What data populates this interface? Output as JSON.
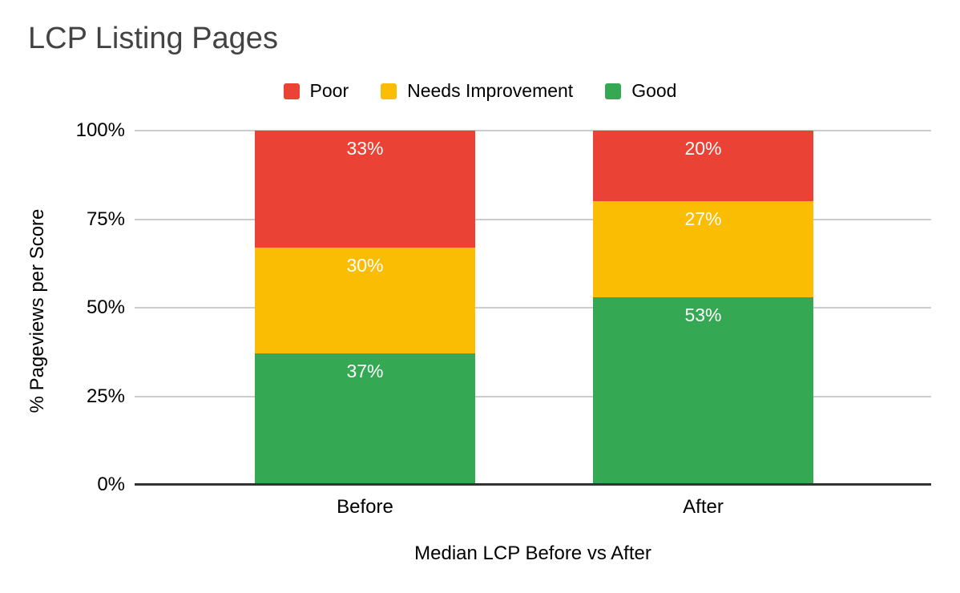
{
  "chart": {
    "title": "LCP Listing Pages",
    "ylabel": "% Pageviews per Score",
    "xlabel": "Median LCP Before vs After"
  },
  "colors": {
    "poor": "#EA4335",
    "needs_improvement": "#FBBC04",
    "good": "#34A853",
    "gridline": "#CCCCCC",
    "axis_line": "#333333",
    "title_text": "#434343",
    "tick_text": "#000000",
    "data_label_text": "#FFFFFF",
    "background": "#FFFFFF"
  },
  "chart_data": {
    "type": "bar",
    "stacked": true,
    "percent_stacked": true,
    "title": "LCP Listing Pages",
    "xlabel": "Median LCP Before vs After",
    "ylabel": "% Pageviews per Score",
    "categories": [
      "Before",
      "After"
    ],
    "series": [
      {
        "name": "Poor",
        "color": "#EA4335",
        "values": [
          33,
          20
        ],
        "labels": [
          "33%",
          "20%"
        ]
      },
      {
        "name": "Needs Improvement",
        "color": "#FBBC04",
        "values": [
          30,
          27
        ],
        "labels": [
          "30%",
          "27%"
        ]
      },
      {
        "name": "Good",
        "color": "#34A853",
        "values": [
          37,
          53
        ],
        "labels": [
          "37%",
          "53%"
        ]
      }
    ],
    "stack_order_top_to_bottom": [
      "Poor",
      "Needs Improvement",
      "Good"
    ],
    "ylim": [
      0,
      100
    ],
    "yticks": {
      "values": [
        0,
        25,
        50,
        75,
        100
      ],
      "labels": [
        "0%",
        "25%",
        "50%",
        "75%",
        "100%"
      ]
    },
    "grid": true,
    "legend_position": "top"
  }
}
